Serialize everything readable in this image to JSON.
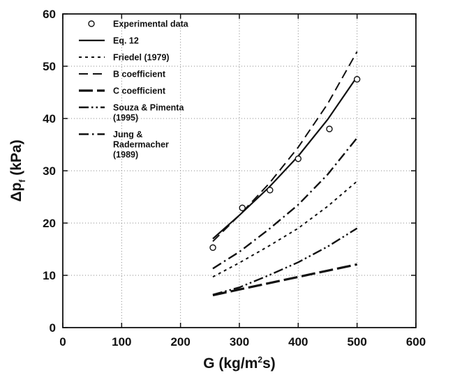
{
  "chart_data": {
    "type": "line",
    "xlabel": "G (kg/m²s)",
    "ylabel": "Δp_f (kPa)",
    "xlabel_parts": {
      "before": "G (kg/m",
      "sup": "2",
      "after": "s)"
    },
    "ylabel_parts": {
      "before": "Δp",
      "sub": "f",
      "after": " (kPa)"
    },
    "xlim": [
      0,
      600
    ],
    "ylim": [
      0,
      60
    ],
    "xticks": [
      0,
      100,
      200,
      300,
      400,
      500,
      600
    ],
    "yticks": [
      0,
      10,
      20,
      30,
      40,
      50,
      60
    ],
    "grid": true,
    "legend_position": "top-left",
    "scatter": {
      "name": "Experimental data",
      "x": [
        255,
        305,
        352,
        400,
        453,
        500
      ],
      "y": [
        15.3,
        22.9,
        26.3,
        32.3,
        38.0,
        47.5
      ]
    },
    "series": [
      {
        "name": "Eq. 12",
        "style": "solid",
        "x": [
          255,
          300,
          350,
          400,
          450,
          500
        ],
        "y": [
          17.0,
          21.5,
          26.8,
          32.8,
          39.8,
          48.0
        ]
      },
      {
        "name": "Friedel (1979)",
        "style": "dotted",
        "x": [
          255,
          300,
          350,
          400,
          450,
          500
        ],
        "y": [
          9.7,
          12.4,
          15.6,
          19.0,
          23.2,
          28.0
        ]
      },
      {
        "name": "B coefficient",
        "style": "dashed",
        "x": [
          255,
          300,
          350,
          400,
          450,
          500
        ],
        "y": [
          16.5,
          21.5,
          27.5,
          34.5,
          42.8,
          52.8
        ]
      },
      {
        "name": "C coefficient",
        "style": "long-dash",
        "x": [
          255,
          300,
          350,
          400,
          450,
          500
        ],
        "y": [
          6.2,
          7.3,
          8.5,
          9.7,
          10.9,
          12.1
        ]
      },
      {
        "name_lines": [
          "Souza & Pimenta",
          "(1995)"
        ],
        "style": "dash-dot-dot",
        "x": [
          255,
          300,
          350,
          400,
          450,
          500
        ],
        "y": [
          6.3,
          7.7,
          10.0,
          12.5,
          15.5,
          19.0
        ]
      },
      {
        "name_lines": [
          "Jung &",
          "Radermacher",
          "(1989)"
        ],
        "style": "dash-dot",
        "x": [
          255,
          300,
          350,
          400,
          450,
          500
        ],
        "y": [
          11.3,
          14.5,
          18.8,
          23.5,
          29.3,
          36.3
        ]
      }
    ]
  }
}
